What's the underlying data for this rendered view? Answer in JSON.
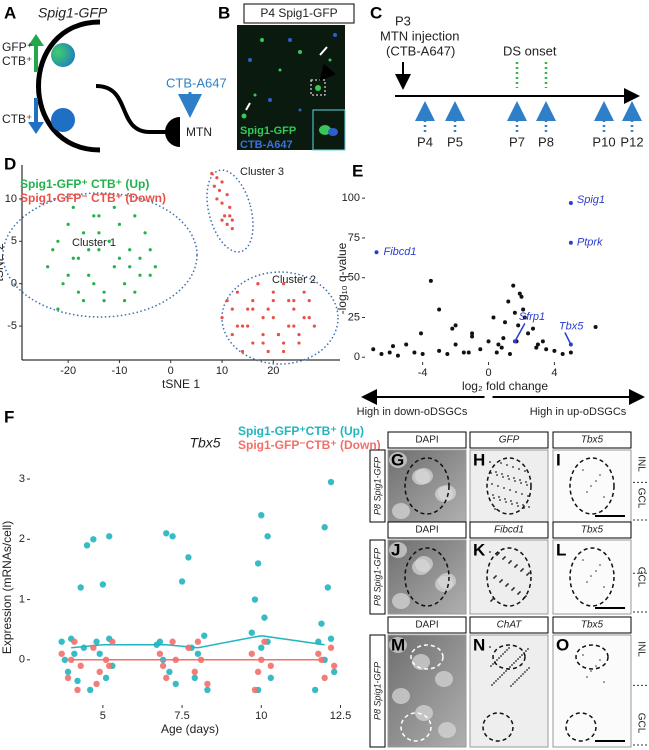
{
  "panel_a": {
    "panel": "A",
    "title": "Spig1-GFP",
    "up_gfp": "GFP⁺",
    "up_ctb": "CTB⁺",
    "down_ctb": "CTB⁺",
    "tracer": "CTB-A647",
    "target": "MTN"
  },
  "panel_b": {
    "panel": "B",
    "title": "P4 Spig1-GFP",
    "legend": [
      "Spig1-GFP",
      "CTB-A647"
    ]
  },
  "panel_c": {
    "panel": "C",
    "start_day": "P3",
    "injection": "MTN injection",
    "tracer": "(CTB-A647)",
    "event": "DS onset",
    "days": [
      "P4",
      "P5",
      "P7",
      "P8",
      "P10",
      "P12"
    ]
  },
  "chart_data": [
    {
      "type": "scatter",
      "panel": "D",
      "x_label": "tSNE 1",
      "y_label": "tSNE 2",
      "xlim": [
        -29,
        33
      ],
      "ylim": [
        -9,
        14
      ],
      "xticks": [
        -20,
        -10,
        0,
        10,
        20
      ],
      "yticks": [
        -5,
        0,
        5,
        10
      ],
      "grid": false,
      "legend": "top-left",
      "annotations": [
        "Cluster 1",
        "Cluster 2",
        "Cluster 3"
      ],
      "series": [
        {
          "name": "Spig1-GFP⁺ CTB⁺ (Up)",
          "color": "#22b24c",
          "x": [
            -24,
            -22,
            -21,
            -20,
            -19,
            -18,
            -17,
            -16,
            -15,
            -14,
            -13,
            -12,
            -11,
            -10,
            -9,
            -8,
            -7,
            -6,
            -5,
            -4,
            -22,
            -19,
            -16,
            -13,
            -10,
            -7,
            -4,
            -20,
            -17,
            -14,
            -11,
            -8,
            -23,
            -18,
            -15,
            -12,
            -9,
            -6,
            -3,
            -14
          ],
          "values": [
            2,
            5,
            0,
            7,
            3,
            -1,
            6,
            1,
            8,
            4,
            -2,
            5,
            2,
            7,
            0,
            4,
            -1,
            3,
            6,
            1,
            -3,
            9,
            4,
            -1,
            3,
            8,
            4,
            1,
            -2,
            6,
            9,
            2,
            4,
            3,
            0,
            5,
            -2,
            1,
            2,
            8
          ]
        },
        {
          "name": "Spig1-GFP⁻ CTB⁺ (Down)",
          "color": "#e8504a",
          "x": [
            8,
            9,
            10,
            9.5,
            11,
            10,
            11.5,
            10.5,
            11,
            12,
            9,
            8.5,
            10,
            11.5,
            12,
            10,
            11,
            12,
            13,
            14,
            15,
            16,
            17,
            18,
            19,
            20,
            21,
            22,
            23,
            24,
            25,
            26,
            27,
            28,
            12,
            14,
            16,
            18,
            20,
            22,
            24,
            26,
            15,
            17,
            19,
            21,
            23,
            25,
            13,
            27,
            18,
            20,
            22,
            24,
            16
          ],
          "values": [
            13,
            12.5,
            12,
            11,
            10.5,
            9.5,
            9,
            8,
            7,
            6.5,
            10,
            11.5,
            7.5,
            8,
            7.5,
            -4,
            -2,
            -6,
            -1,
            -5,
            -3,
            -7,
            0,
            -4,
            -8,
            -2,
            -6,
            0,
            -5,
            -3,
            -7,
            -1,
            -4,
            -5,
            -3,
            -8,
            -2,
            -6,
            -1,
            -7,
            -2,
            -4,
            -5,
            0,
            -3,
            -6,
            -2,
            -6,
            -5,
            -2,
            -7,
            -4,
            -8,
            -5,
            -3
          ]
        }
      ]
    },
    {
      "type": "scatter",
      "panel": "E",
      "x_label": "log₂ fold change",
      "y_label": "-log₁₀ q-value",
      "xlim": [
        -7.5,
        9.5
      ],
      "ylim": [
        -3,
        102
      ],
      "xticks": [
        -4,
        0,
        4
      ],
      "yticks": [
        0,
        25,
        50,
        75,
        100
      ],
      "grid": false,
      "annotations": [
        "High in down-oDSGCs",
        "High in up-oDSGCs"
      ],
      "series": [
        {
          "color": "#111111",
          "x": [
            -7,
            -6.5,
            -6,
            -5.5,
            -5,
            -4.5,
            -4,
            -3.5,
            -3,
            -2.5,
            -2,
            -1.5,
            -1,
            -0.5,
            0,
            0.3,
            0.6,
            0.9,
            1.2,
            1.5,
            1.8,
            2.1,
            2.4,
            2.7,
            3,
            3.5,
            4,
            4.5,
            5,
            -3,
            -2,
            -1,
            0.5,
            1,
            1.6,
            2,
            2.2,
            -4.1,
            -2.2,
            1.7,
            2.9,
            6.5,
            -1.2,
            0.8,
            1.3,
            -5.8,
            3.3,
            1.9
          ],
          "values": [
            5,
            2,
            3,
            1,
            8,
            3,
            2,
            48,
            4,
            2,
            8,
            3,
            15,
            5,
            10,
            25,
            8,
            12,
            35,
            45,
            20,
            30,
            15,
            18,
            8,
            5,
            4,
            2,
            3,
            30,
            20,
            13,
            3,
            22,
            28,
            38,
            25,
            15,
            18,
            10,
            6,
            19,
            3,
            6,
            2,
            7,
            10,
            40
          ]
        },
        {
          "color": "#2b3ccf",
          "x": [
            5,
            5,
            -6.8,
            1.6,
            5
          ],
          "values": [
            97,
            72,
            66,
            10,
            8
          ],
          "labels": [
            "Spig1",
            "Ptprk",
            "Fibcd1",
            "Sfrp1",
            "Tbx5"
          ]
        }
      ]
    },
    {
      "type": "scatter",
      "panel": "F",
      "title": "Tbx5",
      "x_label": "Age (days)",
      "y_label": "Expression (mRNAs/cell)",
      "xlim": [
        2.7,
        12.8
      ],
      "ylim": [
        -0.75,
        3.15
      ],
      "xticks": [
        5,
        7.5,
        10,
        12.5
      ],
      "yticks": [
        0,
        1,
        2,
        3
      ],
      "grid": false,
      "legend": "top-right",
      "series": [
        {
          "name": "Spig1-GFP⁺CTB⁺ (Up)",
          "color": "#21b5bf",
          "x": [
            3.7,
            3.9,
            4.1,
            4.3,
            4.0,
            4.2,
            3.8,
            4.4,
            4.5,
            4.7,
            5.0,
            5.2,
            4.8,
            5.1,
            4.9,
            5.3,
            4.6,
            5.2,
            7.0,
            7.2,
            6.8,
            7.1,
            6.9,
            7.3,
            6.7,
            7.5,
            7.7,
            8.2,
            7.9,
            8.0,
            8.3,
            7.8,
            10.0,
            10.2,
            9.9,
            9.8,
            10.1,
            9.7,
            10.3,
            10.0,
            9.9,
            10.2,
            12.2,
            12.0,
            12.1,
            11.9,
            11.8,
            12.3,
            12.0,
            11.7,
            12.2
          ],
          "values": [
            0.3,
            -0.2,
            0.1,
            1.2,
            0.35,
            -0.35,
            0,
            0.2,
            1.9,
            2.0,
            1.25,
            2.05,
            0.3,
            -0.3,
            0.1,
            -0.1,
            -0.5,
            0.35,
            2.1,
            2.05,
            0.3,
            -0.2,
            0,
            -0.4,
            0.25,
            1.3,
            1.7,
            0.4,
            -0.3,
            0.1,
            -0.5,
            0.2,
            2.4,
            2.05,
            1.6,
            1.0,
            0.7,
            0.45,
            -0.3,
            0.2,
            -0.5,
            0.3,
            2.95,
            2.2,
            1.2,
            0.6,
            0.3,
            -0.2,
            0,
            -0.5,
            0.35
          ],
          "means": {
            "x": [
              4,
              5,
              7,
              8,
              10,
              12
            ],
            "values": [
              0.2,
              0.25,
              0.25,
              0.2,
              0.4,
              0.25
            ]
          }
        },
        {
          "name": "Spig1-GFP⁻CTB⁺ (Down)",
          "color": "#f36f6a",
          "x": [
            3.7,
            3.9,
            4.1,
            4.3,
            4.0,
            4.2,
            4.7,
            4.9,
            5.1,
            5.3,
            4.8,
            5.2,
            6.8,
            7.0,
            7.2,
            6.9,
            7.3,
            7.7,
            7.9,
            8.1,
            8.3,
            8.0,
            9.7,
            9.9,
            10.1,
            10.3,
            10.0,
            9.8,
            11.8,
            12.0,
            12.2,
            11.9,
            12.3
          ],
          "values": [
            0.1,
            -0.3,
            0.3,
            -0.1,
            0,
            -0.5,
            0.2,
            -0.2,
            0,
            0.3,
            -0.4,
            -0.1,
            0.1,
            -0.3,
            0.3,
            -0.1,
            0,
            0.2,
            -0.2,
            0,
            -0.4,
            0.3,
            0.1,
            -0.2,
            0.3,
            -0.1,
            0,
            -0.5,
            0.1,
            -0.3,
            0.2,
            0,
            -0.1
          ],
          "means": {
            "x": [
              4,
              5,
              7,
              8,
              10,
              12
            ],
            "values": [
              0,
              0,
              0,
              0,
              0,
              0
            ]
          }
        }
      ]
    }
  ],
  "panel_g_o": {
    "rows": [
      {
        "side": "P8 Spig1-GFP",
        "cells": [
          {
            "panel": "G",
            "label": "DAPI"
          },
          {
            "panel": "H",
            "label": "GFP"
          },
          {
            "panel": "I",
            "label": "Tbx5"
          }
        ],
        "layers": [
          "INL",
          "GCL"
        ]
      },
      {
        "side": "P8 Spig1-GFP",
        "cells": [
          {
            "panel": "J",
            "label": "DAPI"
          },
          {
            "panel": "K",
            "label": "Fibcd1"
          },
          {
            "panel": "L",
            "label": "Tbx5"
          }
        ],
        "layers": [
          "GCL"
        ]
      },
      {
        "side": "P8 Spig1-GFP",
        "cells": [
          {
            "panel": "M",
            "label": "DAPI"
          },
          {
            "panel": "N",
            "label": "ChAT"
          },
          {
            "panel": "O",
            "label": "Tbx5"
          }
        ],
        "layers": [
          "INL",
          "GCL"
        ]
      }
    ]
  }
}
